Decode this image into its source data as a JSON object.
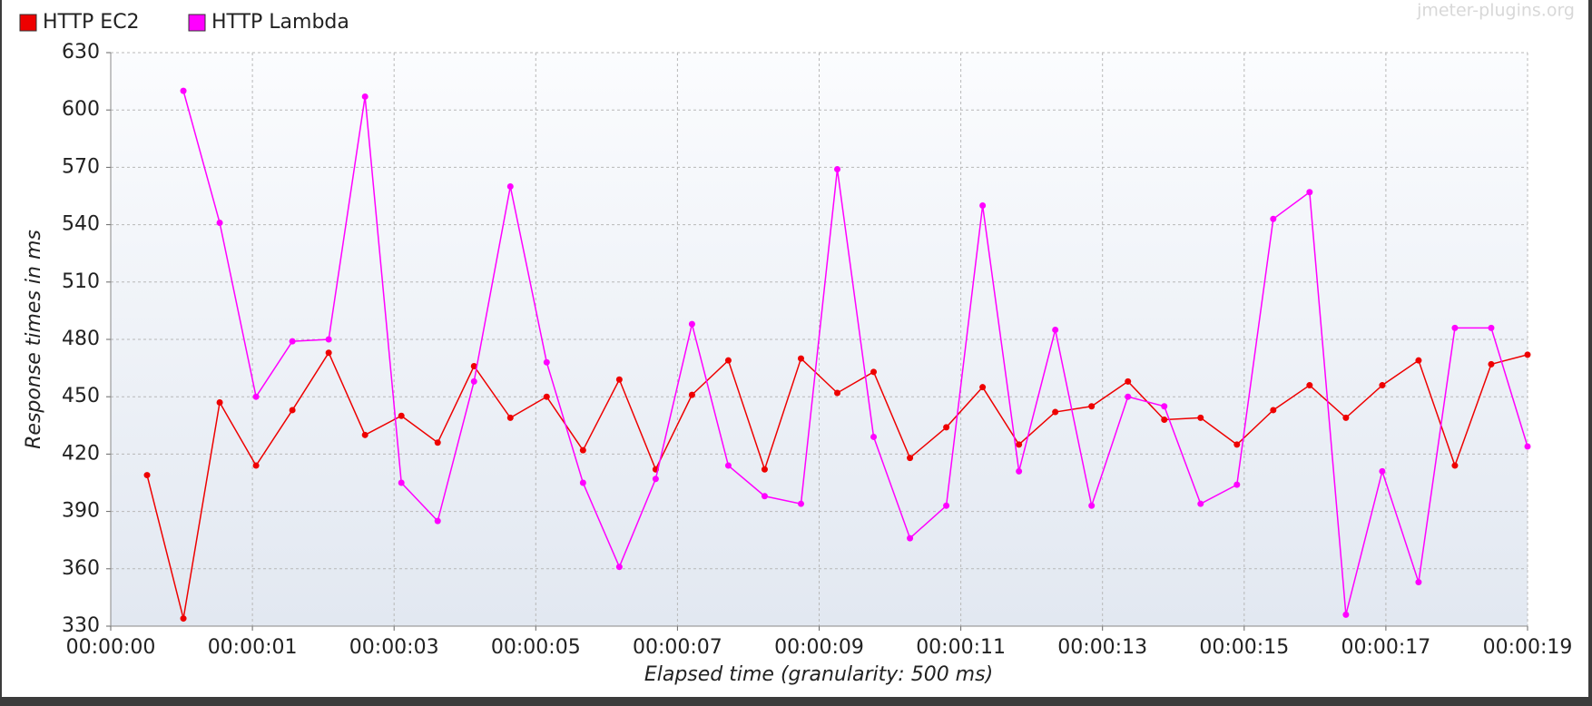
{
  "chart_data": {
    "type": "line",
    "watermark": "jmeter-plugins.org",
    "x_label": "Elapsed time (granularity: 500 ms)",
    "y_label": "Response times in ms",
    "legend": "top-left",
    "grid": true,
    "xlim": [
      0,
      19.5
    ],
    "xticks": [
      {
        "value": 0,
        "label": "00:00:00"
      },
      {
        "value": 1.95,
        "label": "00:00:01"
      },
      {
        "value": 3.9,
        "label": "00:00:03"
      },
      {
        "value": 5.85,
        "label": "00:00:05"
      },
      {
        "value": 7.8,
        "label": "00:00:07"
      },
      {
        "value": 9.75,
        "label": "00:00:09"
      },
      {
        "value": 11.7,
        "label": "00:00:11"
      },
      {
        "value": 13.65,
        "label": "00:00:13"
      },
      {
        "value": 15.6,
        "label": "00:00:15"
      },
      {
        "value": 17.55,
        "label": "00:00:17"
      },
      {
        "value": 19.5,
        "label": "00:00:19"
      }
    ],
    "ylim": [
      330,
      630
    ],
    "yticks": [
      330,
      360,
      390,
      420,
      450,
      480,
      510,
      540,
      570,
      600,
      630
    ],
    "x": [
      0.5,
      1.0,
      1.5,
      2.0,
      2.5,
      3.0,
      3.5,
      4.0,
      4.5,
      5.0,
      5.5,
      6.0,
      6.5,
      7.0,
      7.5,
      8.0,
      8.5,
      9.0,
      9.5,
      10.0,
      10.5,
      11.0,
      11.5,
      12.0,
      12.5,
      13.0,
      13.5,
      14.0,
      14.5,
      15.0,
      15.5,
      16.0,
      16.5,
      17.0,
      17.5,
      18.0,
      18.5,
      19.0,
      19.5
    ],
    "series": [
      {
        "name": "HTTP EC2",
        "color": "#ee0000",
        "values": [
          409,
          334,
          447,
          414,
          443,
          473,
          430,
          440,
          426,
          466,
          439,
          450,
          422,
          459,
          412,
          451,
          469,
          412,
          470,
          452,
          463,
          418,
          434,
          455,
          425,
          442,
          445,
          458,
          438,
          439,
          425,
          443,
          456,
          439,
          456,
          469,
          414,
          467,
          472
        ]
      },
      {
        "name": "HTTP Lambda",
        "color": "#ff00ff",
        "values": [
          null,
          610,
          541,
          450,
          479,
          480,
          607,
          405,
          385,
          458,
          560,
          468,
          405,
          361,
          407,
          488,
          414,
          398,
          394,
          569,
          429,
          376,
          393,
          550,
          411,
          485,
          393,
          450,
          445,
          394,
          404,
          543,
          557,
          336,
          411,
          353,
          486,
          486,
          424
        ]
      }
    ]
  }
}
